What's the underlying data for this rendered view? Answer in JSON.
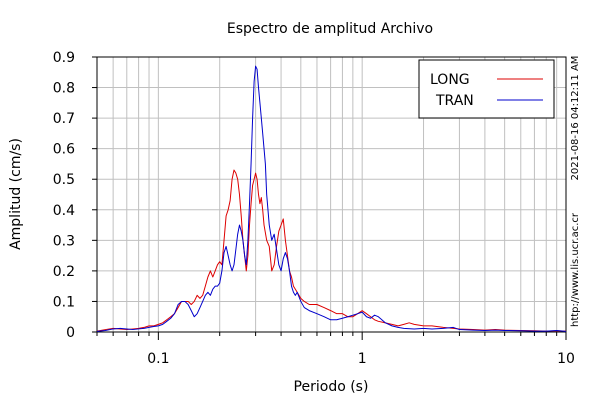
{
  "chart_data": {
    "type": "line",
    "title": "Espectro de amplitud Archivo",
    "xlabel": "Periodo (s)",
    "ylabel": "Amplitud (cm/s)",
    "xscale": "log",
    "xlim": [
      0.05,
      10
    ],
    "ylim": [
      0,
      0.9
    ],
    "x_ticks": [
      {
        "value": 0.1,
        "label": "0.1"
      },
      {
        "value": 1,
        "label": "1"
      },
      {
        "value": 10,
        "label": "10"
      }
    ],
    "y_ticks": [
      {
        "value": 0,
        "label": "0"
      },
      {
        "value": 0.1,
        "label": "0.1"
      },
      {
        "value": 0.2,
        "label": "0.2"
      },
      {
        "value": 0.3,
        "label": "0.3"
      },
      {
        "value": 0.4,
        "label": "0.4"
      },
      {
        "value": 0.5,
        "label": "0.5"
      },
      {
        "value": 0.6,
        "label": "0.6"
      },
      {
        "value": 0.7,
        "label": "0.7"
      },
      {
        "value": 0.8,
        "label": "0.8"
      },
      {
        "value": 0.9,
        "label": "0.9"
      }
    ],
    "grid": true,
    "legend_position": "top-right",
    "series": [
      {
        "name": "LONG",
        "color": "#dd0000",
        "points": [
          [
            0.05,
            0.003
          ],
          [
            0.055,
            0.008
          ],
          [
            0.06,
            0.012
          ],
          [
            0.065,
            0.01
          ],
          [
            0.07,
            0.008
          ],
          [
            0.075,
            0.01
          ],
          [
            0.08,
            0.012
          ],
          [
            0.085,
            0.015
          ],
          [
            0.09,
            0.02
          ],
          [
            0.095,
            0.02
          ],
          [
            0.1,
            0.025
          ],
          [
            0.105,
            0.03
          ],
          [
            0.11,
            0.04
          ],
          [
            0.115,
            0.05
          ],
          [
            0.12,
            0.06
          ],
          [
            0.125,
            0.08
          ],
          [
            0.13,
            0.1
          ],
          [
            0.135,
            0.1
          ],
          [
            0.14,
            0.1
          ],
          [
            0.145,
            0.09
          ],
          [
            0.15,
            0.1
          ],
          [
            0.155,
            0.12
          ],
          [
            0.16,
            0.11
          ],
          [
            0.165,
            0.12
          ],
          [
            0.17,
            0.15
          ],
          [
            0.175,
            0.18
          ],
          [
            0.18,
            0.2
          ],
          [
            0.185,
            0.18
          ],
          [
            0.19,
            0.2
          ],
          [
            0.195,
            0.22
          ],
          [
            0.2,
            0.23
          ],
          [
            0.205,
            0.22
          ],
          [
            0.21,
            0.3
          ],
          [
            0.215,
            0.38
          ],
          [
            0.22,
            0.4
          ],
          [
            0.225,
            0.43
          ],
          [
            0.23,
            0.5
          ],
          [
            0.235,
            0.53
          ],
          [
            0.24,
            0.52
          ],
          [
            0.245,
            0.5
          ],
          [
            0.25,
            0.45
          ],
          [
            0.255,
            0.38
          ],
          [
            0.26,
            0.3
          ],
          [
            0.265,
            0.25
          ],
          [
            0.27,
            0.2
          ],
          [
            0.275,
            0.25
          ],
          [
            0.28,
            0.35
          ],
          [
            0.285,
            0.42
          ],
          [
            0.29,
            0.48
          ],
          [
            0.295,
            0.5
          ],
          [
            0.3,
            0.52
          ],
          [
            0.305,
            0.5
          ],
          [
            0.31,
            0.45
          ],
          [
            0.315,
            0.42
          ],
          [
            0.32,
            0.44
          ],
          [
            0.325,
            0.4
          ],
          [
            0.33,
            0.35
          ],
          [
            0.34,
            0.3
          ],
          [
            0.35,
            0.28
          ],
          [
            0.36,
            0.2
          ],
          [
            0.37,
            0.22
          ],
          [
            0.38,
            0.28
          ],
          [
            0.39,
            0.33
          ],
          [
            0.4,
            0.35
          ],
          [
            0.41,
            0.37
          ],
          [
            0.42,
            0.3
          ],
          [
            0.43,
            0.25
          ],
          [
            0.44,
            0.2
          ],
          [
            0.45,
            0.18
          ],
          [
            0.46,
            0.15
          ],
          [
            0.47,
            0.14
          ],
          [
            0.48,
            0.13
          ],
          [
            0.5,
            0.11
          ],
          [
            0.52,
            0.1
          ],
          [
            0.55,
            0.09
          ],
          [
            0.6,
            0.09
          ],
          [
            0.65,
            0.08
          ],
          [
            0.7,
            0.07
          ],
          [
            0.75,
            0.06
          ],
          [
            0.8,
            0.06
          ],
          [
            0.85,
            0.05
          ],
          [
            0.9,
            0.05
          ],
          [
            0.95,
            0.06
          ],
          [
            1.0,
            0.07
          ],
          [
            1.05,
            0.06
          ],
          [
            1.1,
            0.05
          ],
          [
            1.15,
            0.04
          ],
          [
            1.2,
            0.035
          ],
          [
            1.3,
            0.03
          ],
          [
            1.4,
            0.025
          ],
          [
            1.5,
            0.02
          ],
          [
            1.6,
            0.025
          ],
          [
            1.7,
            0.03
          ],
          [
            1.8,
            0.025
          ],
          [
            2.0,
            0.02
          ],
          [
            2.2,
            0.02
          ],
          [
            2.5,
            0.015
          ],
          [
            2.8,
            0.012
          ],
          [
            3.0,
            0.01
          ],
          [
            3.5,
            0.008
          ],
          [
            4.0,
            0.006
          ],
          [
            4.5,
            0.008
          ],
          [
            5.0,
            0.006
          ],
          [
            6.0,
            0.005
          ],
          [
            7.0,
            0.004
          ],
          [
            8.0,
            0.003
          ],
          [
            9.0,
            0.004
          ],
          [
            10.0,
            0.003
          ]
        ]
      },
      {
        "name": "TRAN",
        "color": "#0000cc",
        "points": [
          [
            0.05,
            0.002
          ],
          [
            0.055,
            0.005
          ],
          [
            0.06,
            0.01
          ],
          [
            0.065,
            0.012
          ],
          [
            0.07,
            0.01
          ],
          [
            0.075,
            0.008
          ],
          [
            0.08,
            0.01
          ],
          [
            0.085,
            0.012
          ],
          [
            0.09,
            0.015
          ],
          [
            0.095,
            0.018
          ],
          [
            0.1,
            0.02
          ],
          [
            0.105,
            0.025
          ],
          [
            0.11,
            0.035
          ],
          [
            0.115,
            0.045
          ],
          [
            0.12,
            0.06
          ],
          [
            0.125,
            0.09
          ],
          [
            0.13,
            0.1
          ],
          [
            0.135,
            0.1
          ],
          [
            0.14,
            0.09
          ],
          [
            0.145,
            0.07
          ],
          [
            0.15,
            0.05
          ],
          [
            0.155,
            0.06
          ],
          [
            0.16,
            0.08
          ],
          [
            0.165,
            0.1
          ],
          [
            0.17,
            0.12
          ],
          [
            0.175,
            0.13
          ],
          [
            0.18,
            0.12
          ],
          [
            0.185,
            0.14
          ],
          [
            0.19,
            0.15
          ],
          [
            0.195,
            0.15
          ],
          [
            0.2,
            0.16
          ],
          [
            0.205,
            0.2
          ],
          [
            0.21,
            0.26
          ],
          [
            0.215,
            0.28
          ],
          [
            0.22,
            0.25
          ],
          [
            0.225,
            0.22
          ],
          [
            0.23,
            0.2
          ],
          [
            0.235,
            0.22
          ],
          [
            0.24,
            0.27
          ],
          [
            0.245,
            0.32
          ],
          [
            0.25,
            0.35
          ],
          [
            0.255,
            0.33
          ],
          [
            0.26,
            0.3
          ],
          [
            0.265,
            0.25
          ],
          [
            0.27,
            0.22
          ],
          [
            0.275,
            0.3
          ],
          [
            0.28,
            0.42
          ],
          [
            0.285,
            0.55
          ],
          [
            0.29,
            0.7
          ],
          [
            0.295,
            0.82
          ],
          [
            0.3,
            0.87
          ],
          [
            0.305,
            0.86
          ],
          [
            0.31,
            0.8
          ],
          [
            0.315,
            0.75
          ],
          [
            0.32,
            0.7
          ],
          [
            0.325,
            0.65
          ],
          [
            0.33,
            0.6
          ],
          [
            0.335,
            0.55
          ],
          [
            0.34,
            0.45
          ],
          [
            0.35,
            0.35
          ],
          [
            0.36,
            0.3
          ],
          [
            0.37,
            0.32
          ],
          [
            0.38,
            0.27
          ],
          [
            0.39,
            0.22
          ],
          [
            0.4,
            0.2
          ],
          [
            0.41,
            0.24
          ],
          [
            0.42,
            0.26
          ],
          [
            0.43,
            0.24
          ],
          [
            0.44,
            0.2
          ],
          [
            0.45,
            0.15
          ],
          [
            0.46,
            0.13
          ],
          [
            0.47,
            0.12
          ],
          [
            0.48,
            0.13
          ],
          [
            0.5,
            0.1
          ],
          [
            0.52,
            0.08
          ],
          [
            0.55,
            0.07
          ],
          [
            0.6,
            0.06
          ],
          [
            0.65,
            0.05
          ],
          [
            0.7,
            0.04
          ],
          [
            0.75,
            0.04
          ],
          [
            0.8,
            0.045
          ],
          [
            0.85,
            0.05
          ],
          [
            0.9,
            0.055
          ],
          [
            0.95,
            0.06
          ],
          [
            1.0,
            0.065
          ],
          [
            1.05,
            0.05
          ],
          [
            1.1,
            0.045
          ],
          [
            1.15,
            0.055
          ],
          [
            1.2,
            0.05
          ],
          [
            1.3,
            0.03
          ],
          [
            1.4,
            0.02
          ],
          [
            1.5,
            0.015
          ],
          [
            1.6,
            0.012
          ],
          [
            1.8,
            0.01
          ],
          [
            2.0,
            0.012
          ],
          [
            2.2,
            0.01
          ],
          [
            2.5,
            0.012
          ],
          [
            2.8,
            0.015
          ],
          [
            3.0,
            0.008
          ],
          [
            3.5,
            0.006
          ],
          [
            4.0,
            0.005
          ],
          [
            4.5,
            0.006
          ],
          [
            5.0,
            0.005
          ],
          [
            6.0,
            0.004
          ],
          [
            7.0,
            0.003
          ],
          [
            8.0,
            0.003
          ],
          [
            9.0,
            0.005
          ],
          [
            10.0,
            0.002
          ]
        ]
      }
    ],
    "side_labels": {
      "timestamp": "2021-08-16 04:12:11 AM",
      "url": "http://www.lis.ucr.ac.cr"
    }
  }
}
